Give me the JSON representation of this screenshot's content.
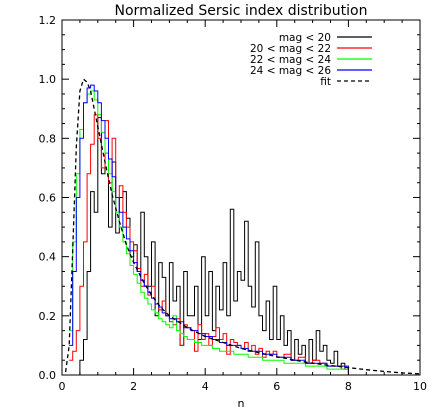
{
  "chart_data": {
    "type": "line",
    "title": "Normalized Sersic index distribution",
    "xlabel": "n",
    "ylabel": "",
    "xlim": [
      0,
      10
    ],
    "ylim": [
      0,
      1.2
    ],
    "xticks": [
      0,
      2,
      4,
      6,
      8,
      10
    ],
    "yticks": [
      0.0,
      0.2,
      0.4,
      0.6,
      0.8,
      1.0,
      1.2
    ],
    "grid": false,
    "legend_position": "top-right",
    "series": [
      {
        "name": "mag < 20",
        "label_left": "mag",
        "label_op": "<",
        "label_right": "20",
        "color": "#000000",
        "style": "step",
        "points": [
          [
            0.4,
            0.0
          ],
          [
            0.5,
            0.05
          ],
          [
            0.6,
            0.12
          ],
          [
            0.7,
            0.35
          ],
          [
            0.8,
            0.62
          ],
          [
            0.9,
            0.55
          ],
          [
            1.0,
            0.87
          ],
          [
            1.1,
            0.68
          ],
          [
            1.2,
            0.75
          ],
          [
            1.3,
            0.5
          ],
          [
            1.4,
            0.72
          ],
          [
            1.5,
            0.48
          ],
          [
            1.6,
            0.6
          ],
          [
            1.7,
            0.62
          ],
          [
            1.8,
            0.53
          ],
          [
            1.9,
            0.4
          ],
          [
            2.0,
            0.44
          ],
          [
            2.1,
            0.35
          ],
          [
            2.2,
            0.55
          ],
          [
            2.3,
            0.4
          ],
          [
            2.4,
            0.3
          ],
          [
            2.5,
            0.45
          ],
          [
            2.6,
            0.2
          ],
          [
            2.7,
            0.38
          ],
          [
            2.8,
            0.33
          ],
          [
            2.9,
            0.2
          ],
          [
            3.0,
            0.38
          ],
          [
            3.1,
            0.25
          ],
          [
            3.2,
            0.3
          ],
          [
            3.3,
            0.1
          ],
          [
            3.4,
            0.35
          ],
          [
            3.5,
            0.2
          ],
          [
            3.6,
            0.2
          ],
          [
            3.7,
            0.3
          ],
          [
            3.8,
            0.12
          ],
          [
            3.9,
            0.4
          ],
          [
            4.0,
            0.2
          ],
          [
            4.1,
            0.35
          ],
          [
            4.2,
            0.15
          ],
          [
            4.3,
            0.3
          ],
          [
            4.4,
            0.22
          ],
          [
            4.5,
            0.38
          ],
          [
            4.6,
            0.2
          ],
          [
            4.7,
            0.56
          ],
          [
            4.8,
            0.25
          ],
          [
            4.9,
            0.35
          ],
          [
            5.0,
            0.32
          ],
          [
            5.1,
            0.52
          ],
          [
            5.2,
            0.3
          ],
          [
            5.3,
            0.23
          ],
          [
            5.4,
            0.45
          ],
          [
            5.5,
            0.2
          ],
          [
            5.6,
            0.15
          ],
          [
            5.7,
            0.25
          ],
          [
            5.8,
            0.12
          ],
          [
            5.9,
            0.3
          ],
          [
            6.0,
            0.12
          ],
          [
            6.1,
            0.2
          ],
          [
            6.2,
            0.1
          ],
          [
            6.3,
            0.15
          ],
          [
            6.4,
            0.05
          ],
          [
            6.5,
            0.12
          ],
          [
            6.6,
            0.07
          ],
          [
            6.7,
            0.1
          ],
          [
            6.8,
            0.04
          ],
          [
            6.9,
            0.12
          ],
          [
            7.0,
            0.05
          ],
          [
            7.1,
            0.15
          ],
          [
            7.2,
            0.08
          ],
          [
            7.3,
            0.1
          ],
          [
            7.4,
            0.05
          ],
          [
            7.5,
            0.04
          ],
          [
            7.6,
            0.08
          ],
          [
            7.7,
            0.03
          ],
          [
            7.8,
            0.04
          ],
          [
            7.9,
            0.02
          ],
          [
            8.0,
            0.0
          ]
        ]
      },
      {
        "name": "20 < mag < 22",
        "label_left": "20",
        "label_op": "<",
        "label_right": "mag < 22",
        "color": "#ff0000",
        "style": "step",
        "points": [
          [
            0.2,
            0.05
          ],
          [
            0.3,
            0.08
          ],
          [
            0.4,
            0.15
          ],
          [
            0.5,
            0.3
          ],
          [
            0.6,
            0.45
          ],
          [
            0.7,
            0.68
          ],
          [
            0.8,
            0.78
          ],
          [
            0.9,
            0.88
          ],
          [
            1.0,
            0.8
          ],
          [
            1.1,
            0.7
          ],
          [
            1.2,
            0.86
          ],
          [
            1.3,
            0.65
          ],
          [
            1.4,
            0.8
          ],
          [
            1.5,
            0.6
          ],
          [
            1.6,
            0.64
          ],
          [
            1.7,
            0.55
          ],
          [
            1.8,
            0.5
          ],
          [
            1.9,
            0.45
          ],
          [
            2.0,
            0.42
          ],
          [
            2.1,
            0.36
          ],
          [
            2.2,
            0.3
          ],
          [
            2.3,
            0.34
          ],
          [
            2.4,
            0.27
          ],
          [
            2.5,
            0.3
          ],
          [
            2.6,
            0.24
          ],
          [
            2.7,
            0.22
          ],
          [
            2.8,
            0.25
          ],
          [
            2.9,
            0.2
          ],
          [
            3.0,
            0.18
          ],
          [
            3.1,
            0.17
          ],
          [
            3.2,
            0.19
          ],
          [
            3.3,
            0.1
          ],
          [
            3.4,
            0.17
          ],
          [
            3.5,
            0.16
          ],
          [
            3.6,
            0.15
          ],
          [
            3.7,
            0.08
          ],
          [
            3.8,
            0.17
          ],
          [
            3.9,
            0.12
          ],
          [
            4.0,
            0.14
          ],
          [
            4.1,
            0.1
          ],
          [
            4.2,
            0.13
          ],
          [
            4.3,
            0.16
          ],
          [
            4.4,
            0.12
          ],
          [
            4.5,
            0.14
          ],
          [
            4.6,
            0.07
          ],
          [
            4.7,
            0.12
          ],
          [
            4.8,
            0.11
          ],
          [
            4.9,
            0.1
          ],
          [
            5.0,
            0.09
          ],
          [
            5.1,
            0.11
          ],
          [
            5.2,
            0.08
          ],
          [
            5.3,
            0.1
          ],
          [
            5.4,
            0.07
          ],
          [
            5.5,
            0.09
          ],
          [
            5.6,
            0.06
          ],
          [
            5.7,
            0.08
          ],
          [
            5.8,
            0.07
          ],
          [
            5.9,
            0.08
          ],
          [
            6.0,
            0.06
          ],
          [
            6.2,
            0.07
          ],
          [
            6.4,
            0.05
          ],
          [
            6.6,
            0.06
          ],
          [
            6.8,
            0.04
          ],
          [
            7.0,
            0.05
          ],
          [
            7.2,
            0.04
          ],
          [
            7.4,
            0.03
          ],
          [
            7.6,
            0.03
          ],
          [
            7.8,
            0.02
          ],
          [
            8.0,
            0.01
          ]
        ]
      },
      {
        "name": "22 < mag < 24",
        "label_left": "22",
        "label_op": "<",
        "label_right": "mag < 24",
        "color": "#00ff00",
        "style": "step",
        "points": [
          [
            0.2,
            0.15
          ],
          [
            0.3,
            0.45
          ],
          [
            0.4,
            0.68
          ],
          [
            0.5,
            0.83
          ],
          [
            0.6,
            0.92
          ],
          [
            0.7,
            0.95
          ],
          [
            0.8,
            0.96
          ],
          [
            0.9,
            0.93
          ],
          [
            1.0,
            0.88
          ],
          [
            1.1,
            0.82
          ],
          [
            1.2,
            0.75
          ],
          [
            1.3,
            0.68
          ],
          [
            1.4,
            0.62
          ],
          [
            1.5,
            0.55
          ],
          [
            1.6,
            0.5
          ],
          [
            1.7,
            0.45
          ],
          [
            1.8,
            0.41
          ],
          [
            1.9,
            0.37
          ],
          [
            2.0,
            0.34
          ],
          [
            2.1,
            0.31
          ],
          [
            2.2,
            0.28
          ],
          [
            2.3,
            0.26
          ],
          [
            2.4,
            0.24
          ],
          [
            2.5,
            0.22
          ],
          [
            2.6,
            0.21
          ],
          [
            2.7,
            0.19
          ],
          [
            2.8,
            0.18
          ],
          [
            2.9,
            0.17
          ],
          [
            3.0,
            0.16
          ],
          [
            3.1,
            0.2
          ],
          [
            3.2,
            0.15
          ],
          [
            3.3,
            0.14
          ],
          [
            3.4,
            0.13
          ],
          [
            3.5,
            0.12
          ],
          [
            3.6,
            0.12
          ],
          [
            3.7,
            0.11
          ],
          [
            3.8,
            0.11
          ],
          [
            3.9,
            0.1
          ],
          [
            4.0,
            0.1
          ],
          [
            4.2,
            0.09
          ],
          [
            4.4,
            0.08
          ],
          [
            4.6,
            0.08
          ],
          [
            4.8,
            0.07
          ],
          [
            5.0,
            0.07
          ],
          [
            5.2,
            0.06
          ],
          [
            5.4,
            0.06
          ],
          [
            5.6,
            0.05
          ],
          [
            5.8,
            0.05
          ],
          [
            6.0,
            0.05
          ],
          [
            6.2,
            0.04
          ],
          [
            6.4,
            0.04
          ],
          [
            6.6,
            0.04
          ],
          [
            6.8,
            0.03
          ],
          [
            7.0,
            0.03
          ],
          [
            7.2,
            0.03
          ],
          [
            7.4,
            0.02
          ],
          [
            7.6,
            0.02
          ],
          [
            7.8,
            0.02
          ],
          [
            8.0,
            0.01
          ]
        ]
      },
      {
        "name": "24 < mag < 26",
        "label_left": "24",
        "label_op": "<",
        "label_right": "mag < 26",
        "color": "#0000ff",
        "style": "step",
        "points": [
          [
            0.2,
            0.1
          ],
          [
            0.3,
            0.35
          ],
          [
            0.4,
            0.6
          ],
          [
            0.5,
            0.8
          ],
          [
            0.6,
            0.92
          ],
          [
            0.7,
            0.97
          ],
          [
            0.8,
            0.98
          ],
          [
            0.9,
            0.96
          ],
          [
            1.0,
            0.92
          ],
          [
            1.1,
            0.86
          ],
          [
            1.2,
            0.8
          ],
          [
            1.3,
            0.73
          ],
          [
            1.4,
            0.67
          ],
          [
            1.5,
            0.6
          ],
          [
            1.6,
            0.55
          ],
          [
            1.7,
            0.5
          ],
          [
            1.8,
            0.46
          ],
          [
            1.9,
            0.42
          ],
          [
            2.0,
            0.38
          ],
          [
            2.1,
            0.35
          ],
          [
            2.2,
            0.32
          ],
          [
            2.3,
            0.3
          ],
          [
            2.4,
            0.28
          ],
          [
            2.5,
            0.26
          ],
          [
            2.6,
            0.24
          ],
          [
            2.7,
            0.23
          ],
          [
            2.8,
            0.21
          ],
          [
            2.9,
            0.2
          ],
          [
            3.0,
            0.19
          ],
          [
            3.2,
            0.18
          ],
          [
            3.4,
            0.16
          ],
          [
            3.6,
            0.15
          ],
          [
            3.8,
            0.14
          ],
          [
            4.0,
            0.13
          ],
          [
            4.2,
            0.12
          ],
          [
            4.4,
            0.11
          ],
          [
            4.6,
            0.1
          ],
          [
            4.8,
            0.1
          ],
          [
            5.0,
            0.09
          ],
          [
            5.2,
            0.08
          ],
          [
            5.4,
            0.08
          ],
          [
            5.6,
            0.07
          ],
          [
            5.8,
            0.07
          ],
          [
            6.0,
            0.06
          ],
          [
            6.2,
            0.06
          ],
          [
            6.4,
            0.05
          ],
          [
            6.6,
            0.05
          ],
          [
            6.8,
            0.04
          ],
          [
            7.0,
            0.04
          ],
          [
            7.2,
            0.04
          ],
          [
            7.4,
            0.03
          ],
          [
            7.6,
            0.03
          ],
          [
            7.8,
            0.03
          ],
          [
            8.0,
            0.02
          ]
        ]
      },
      {
        "name": "fit",
        "color": "#000000",
        "style": "dashed",
        "points": [
          [
            0.1,
            0.01
          ],
          [
            0.2,
            0.1
          ],
          [
            0.3,
            0.42
          ],
          [
            0.4,
            0.77
          ],
          [
            0.5,
            0.96
          ],
          [
            0.6,
            1.0
          ],
          [
            0.7,
            0.99
          ],
          [
            0.8,
            0.96
          ],
          [
            0.9,
            0.9
          ],
          [
            1.0,
            0.84
          ],
          [
            1.2,
            0.72
          ],
          [
            1.4,
            0.61
          ],
          [
            1.6,
            0.52
          ],
          [
            1.8,
            0.44
          ],
          [
            2.0,
            0.38
          ],
          [
            2.25,
            0.32
          ],
          [
            2.5,
            0.27
          ],
          [
            2.75,
            0.23
          ],
          [
            3.0,
            0.2
          ],
          [
            3.5,
            0.16
          ],
          [
            4.0,
            0.13
          ],
          [
            4.5,
            0.11
          ],
          [
            5.0,
            0.09
          ],
          [
            5.5,
            0.075
          ],
          [
            6.0,
            0.062
          ],
          [
            6.5,
            0.05
          ],
          [
            7.0,
            0.04
          ],
          [
            7.5,
            0.032
          ],
          [
            8.0,
            0.025
          ],
          [
            8.5,
            0.018
          ],
          [
            9.0,
            0.012
          ],
          [
            9.5,
            0.007
          ],
          [
            10.0,
            0.004
          ]
        ]
      }
    ]
  }
}
